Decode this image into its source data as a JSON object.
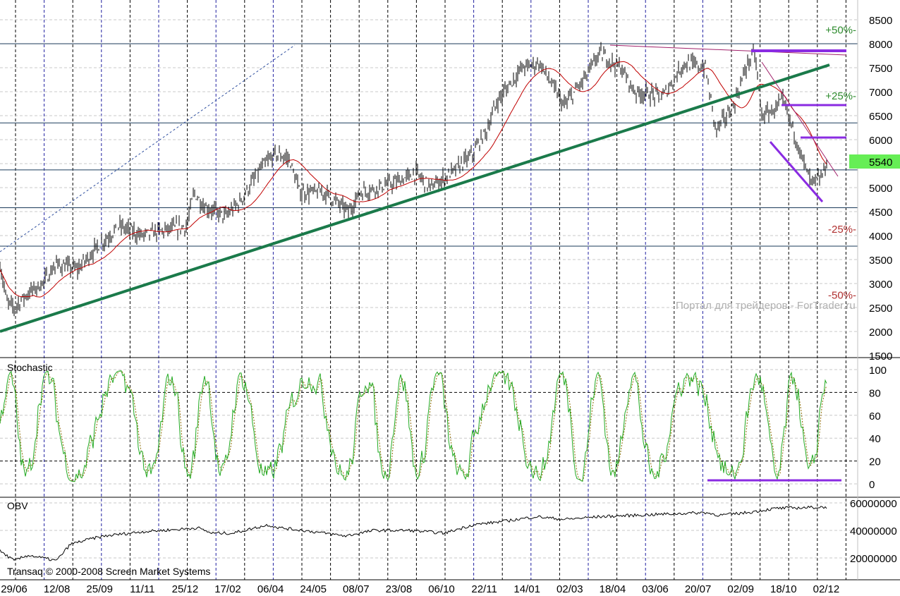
{
  "chart_data": [
    {
      "type": "line",
      "panel": "price",
      "title": "",
      "ylim": [
        1500,
        8500
      ],
      "yticks": [
        "8500",
        "8000",
        "7500",
        "7000",
        "6500",
        "6000",
        "5000",
        "4500",
        "4000",
        "3500",
        "3000",
        "2500",
        "2000",
        "1500"
      ],
      "last_price": "5540",
      "percent_levels": [
        {
          "label": "+50%-",
          "value": 8300,
          "color": "#2e8b2e"
        },
        {
          "label": "+25%-",
          "value": 6930,
          "color": "#2e8b2e"
        },
        {
          "label": "-25%-",
          "value": 4150,
          "color": "#b03030"
        },
        {
          "label": "-50%-",
          "value": 2770,
          "color": "#b03030"
        }
      ],
      "x_note": "x is bar index (≈0..586)",
      "price_keypoints": [
        [
          0,
          3400
        ],
        [
          20,
          2600
        ],
        [
          40,
          2500
        ],
        [
          80,
          2800
        ],
        [
          120,
          3000
        ],
        [
          160,
          3400
        ],
        [
          220,
          3300
        ],
        [
          280,
          3800
        ],
        [
          340,
          4200
        ],
        [
          400,
          4000
        ],
        [
          460,
          4100
        ],
        [
          530,
          4200
        ],
        [
          550,
          4900
        ],
        [
          580,
          4600
        ],
        [
          640,
          4400
        ],
        [
          680,
          4700
        ],
        [
          740,
          5400
        ],
        [
          780,
          5700
        ],
        [
          820,
          5600
        ],
        [
          850,
          4900
        ],
        [
          920,
          4900
        ],
        [
          990,
          4500
        ],
        [
          1020,
          4900
        ],
        [
          1120,
          5100
        ],
        [
          1180,
          5300
        ],
        [
          1220,
          5000
        ],
        [
          1280,
          5300
        ],
        [
          1340,
          5700
        ],
        [
          1380,
          6200
        ],
        [
          1410,
          6800
        ],
        [
          1480,
          7500
        ],
        [
          1530,
          7600
        ],
        [
          1600,
          6700
        ],
        [
          1660,
          7300
        ],
        [
          1700,
          7800
        ],
        [
          1760,
          7500
        ],
        [
          1800,
          7000
        ],
        [
          1880,
          6900
        ],
        [
          1940,
          7600
        ],
        [
          2000,
          7500
        ],
        [
          2030,
          6200
        ],
        [
          2080,
          6700
        ],
        [
          2120,
          7600
        ],
        [
          2140,
          7800
        ],
        [
          2160,
          6500
        ],
        [
          2190,
          6600
        ],
        [
          2220,
          6800
        ],
        [
          2250,
          6200
        ],
        [
          2280,
          5500
        ],
        [
          2300,
          5100
        ],
        [
          2330,
          5200
        ],
        [
          2344,
          5540
        ]
      ],
      "ma_color": "#c00000",
      "horizontal_levels": [
        8000,
        6350,
        5370,
        4580,
        3780
      ],
      "trendlines": [
        {
          "name": "support-trendline",
          "color": "#1a7a4a"
        },
        {
          "name": "resistance-level-7870",
          "color": "#8a2be2"
        },
        {
          "name": "resistance-level-6720",
          "color": "#8a2be2"
        },
        {
          "name": "resistance-level-6030",
          "color": "#8a2be2"
        },
        {
          "name": "falling-channel",
          "color": "#8a2be2"
        }
      ]
    },
    {
      "type": "line",
      "panel": "stochastic",
      "title": "Stochastic",
      "ylim": [
        0,
        100
      ],
      "yticks": [
        "100",
        "80",
        "60",
        "40",
        "20",
        "0"
      ],
      "levels": [
        80,
        20
      ],
      "colors": {
        "k": "#22aa22",
        "d": "#8b6b00"
      }
    },
    {
      "type": "line",
      "panel": "obv",
      "title": "OBV",
      "yticks": [
        "60000000",
        "40000000",
        "20000000"
      ],
      "obv_keypoints": [
        [
          0,
          25
        ],
        [
          40,
          18
        ],
        [
          80,
          22
        ],
        [
          160,
          18
        ],
        [
          200,
          30
        ],
        [
          260,
          34
        ],
        [
          300,
          36
        ],
        [
          400,
          39
        ],
        [
          520,
          41
        ],
        [
          560,
          42
        ],
        [
          600,
          38
        ],
        [
          660,
          38
        ],
        [
          760,
          44
        ],
        [
          790,
          42
        ],
        [
          860,
          40
        ],
        [
          980,
          36
        ],
        [
          1060,
          40
        ],
        [
          1160,
          40
        ],
        [
          1260,
          38
        ],
        [
          1340,
          44
        ],
        [
          1440,
          47
        ],
        [
          1520,
          50
        ],
        [
          1600,
          48
        ],
        [
          1700,
          50
        ],
        [
          1800,
          51
        ],
        [
          1900,
          52
        ],
        [
          2000,
          53
        ],
        [
          2040,
          51
        ],
        [
          2120,
          53
        ],
        [
          2200,
          56
        ],
        [
          2344,
          57
        ]
      ],
      "color": "#000000"
    }
  ],
  "x_axis": {
    "labels": [
      "29/06",
      "12/08",
      "25/09",
      "11/11",
      "25/12",
      "17/02",
      "06/04",
      "24/05",
      "08/07",
      "23/08",
      "06/10",
      "22/11",
      "14/01",
      "02/03",
      "18/04",
      "03/06",
      "20/07",
      "02/09",
      "18/10",
      "02/12"
    ]
  },
  "footer": {
    "copyright": "Transaq © 2000-2008 Screen Market Systems"
  },
  "watermark": "Портал для трейдеров - ForTrader.ru"
}
